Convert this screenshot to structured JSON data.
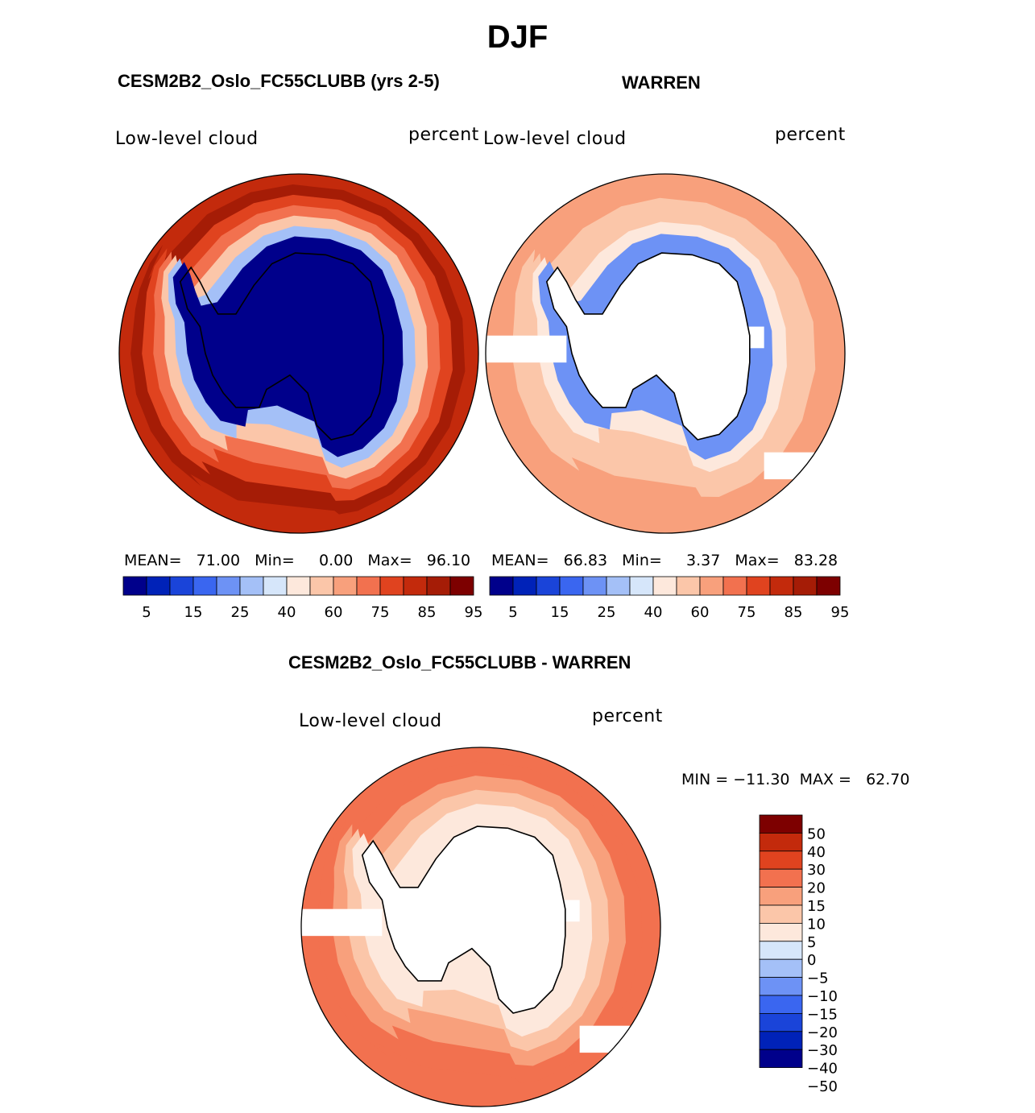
{
  "title": "DJF",
  "colors": {
    "abs_scale": [
      "#00008b",
      "#0022b8",
      "#1a44d9",
      "#3a66f0",
      "#6d92f5",
      "#a4c0f7",
      "#d6e6fa",
      "#fde8dc",
      "#fbc6a9",
      "#f8a07c",
      "#f2714f",
      "#e0431f",
      "#c32a0c",
      "#a51c06",
      "#7d0000"
    ],
    "diff_scale": [
      "#00008b",
      "#0022b8",
      "#1a44d9",
      "#3a66f0",
      "#6d92f5",
      "#a4c0f7",
      "#d6e6fa",
      "#fde8dc",
      "#fbc6a9",
      "#f8a07c",
      "#f2714f",
      "#e0431f",
      "#c32a0c",
      "#7d0000"
    ],
    "land": "#ffffff",
    "coast": "#000000"
  },
  "panels": {
    "model": {
      "title": "CESM2B2_Oslo_FC55CLUBB (yrs 2-5)",
      "left_label": "Low-level cloud",
      "right_label": "percent",
      "stats": "MEAN=   71.00   Min=     0.00   Max=   96.10"
    },
    "obs": {
      "title": "WARREN",
      "left_label": "Low-level cloud",
      "right_label": "percent",
      "stats": "MEAN=   66.83   Min=     3.37   Max=   83.28"
    },
    "diff": {
      "title": "CESM2B2_Oslo_FC55CLUBB - WARREN",
      "left_label": "Low-level cloud",
      "right_label": "percent",
      "stats": "MIN = −11.30  MAX =   62.70"
    }
  },
  "chart_data": [
    {
      "type": "heatmap",
      "name": "model",
      "title": "CESM2B2_Oslo_FC55CLUBB (yrs 2-5)",
      "variable": "Low-level cloud",
      "units": "percent",
      "projection": "south polar stereographic",
      "mean": 71.0,
      "min": 0.0,
      "max": 96.1,
      "colorbar_ticks": [
        "5",
        "15",
        "25",
        "40",
        "60",
        "75",
        "85",
        "95"
      ],
      "rings": [
        {
          "level": 12
        },
        {
          "level": 13
        },
        {
          "level": 11
        },
        {
          "level": 10
        },
        {
          "level": 8
        },
        {
          "level": 5
        },
        {
          "level": 0
        }
      ]
    },
    {
      "type": "heatmap",
      "name": "obs",
      "title": "WARREN",
      "variable": "Low-level cloud",
      "units": "percent",
      "projection": "south polar stereographic",
      "mean": 66.83,
      "min": 3.37,
      "max": 83.28,
      "colorbar_ticks": [
        "5",
        "15",
        "25",
        "40",
        "60",
        "75",
        "85",
        "95"
      ],
      "rings": [
        {
          "level": 9
        },
        {
          "level": 9
        },
        {
          "level": 8
        },
        {
          "level": 8
        },
        {
          "level": 7
        },
        {
          "level": 4
        }
      ]
    },
    {
      "type": "heatmap",
      "name": "diff",
      "title": "CESM2B2_Oslo_FC55CLUBB - WARREN",
      "variable": "Low-level cloud",
      "units": "percent",
      "projection": "south polar stereographic",
      "min": -11.3,
      "max": 62.7,
      "colorbar_ticks": [
        "50",
        "40",
        "30",
        "20",
        "15",
        "10",
        "5",
        "0",
        "−5",
        "−10",
        "−15",
        "−20",
        "−30",
        "−40",
        "−50"
      ],
      "rings": [
        {
          "level": 10
        },
        {
          "level": 10
        },
        {
          "level": 9
        },
        {
          "level": 8
        },
        {
          "level": 7
        }
      ]
    }
  ]
}
